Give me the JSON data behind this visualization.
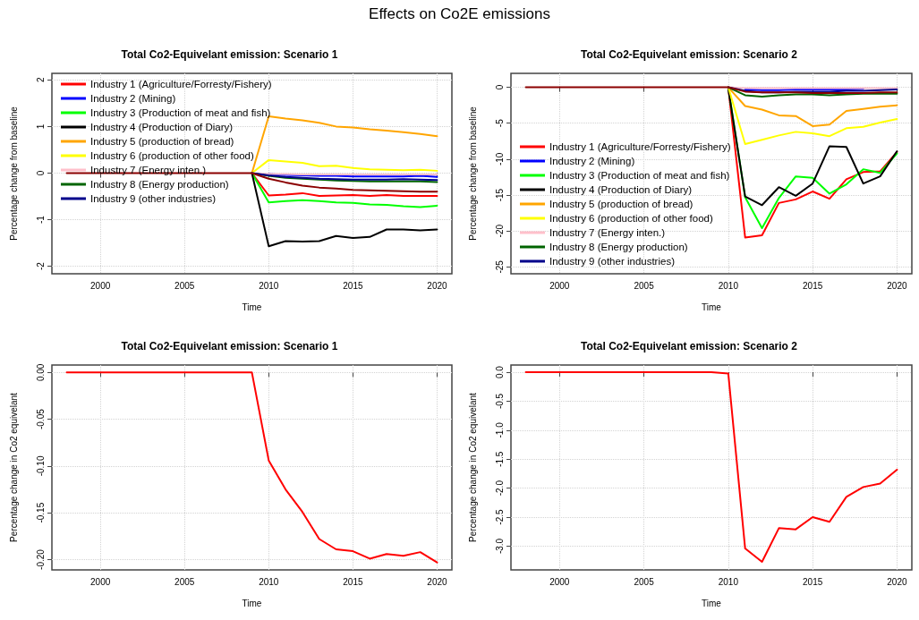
{
  "chart_data": [
    {
      "type": "line",
      "title": "Total Co2-Equivelant emission: Scenario 1",
      "annotations": [
        "Effects on Co2E emissions"
      ],
      "xlabel": "Time",
      "ylabel": "Percentage change from baseline",
      "x": [
        1998,
        1999,
        2000,
        2001,
        2002,
        2003,
        2004,
        2005,
        2006,
        2007,
        2008,
        2009,
        2010,
        2011,
        2012,
        2013,
        2014,
        2015,
        2016,
        2017,
        2018,
        2019,
        2020
      ],
      "xlim": [
        1997.12,
        2020.88
      ],
      "xticks": [
        2000,
        2005,
        2010,
        2015,
        2020
      ],
      "ylim": [
        -2.16,
        2.14
      ],
      "yticks": [
        -2,
        -1,
        0,
        1,
        2
      ],
      "grid": true,
      "legend": "top left",
      "series": [
        {
          "name": "Industry 1 (Agriculture/Forresty/Fishery)",
          "color": "#ff0000",
          "values": [
            null,
            null,
            null,
            null,
            null,
            null,
            null,
            null,
            null,
            null,
            null,
            0,
            -0.48,
            -0.46,
            -0.43,
            -0.49,
            -0.48,
            -0.47,
            -0.49,
            -0.47,
            -0.49,
            -0.49,
            -0.49
          ]
        },
        {
          "name": "Industry 2 (Mining)",
          "color": "#0000ff",
          "values": [
            null,
            null,
            null,
            null,
            null,
            null,
            null,
            null,
            null,
            null,
            null,
            null,
            -0.02,
            -0.04,
            -0.05,
            -0.06,
            -0.06,
            -0.07,
            -0.07,
            -0.07,
            -0.07,
            -0.06,
            -0.08
          ]
        },
        {
          "name": "Industry 3 (Production of meat and fish)",
          "color": "#00ff00",
          "values": [
            null,
            null,
            null,
            null,
            null,
            null,
            null,
            null,
            null,
            null,
            null,
            0,
            -0.63,
            -0.6,
            -0.58,
            -0.6,
            -0.63,
            -0.64,
            -0.67,
            -0.68,
            -0.71,
            -0.73,
            -0.7
          ]
        },
        {
          "name": "Industry 4 (Production of Diary)",
          "color": "#000000",
          "values": [
            null,
            null,
            null,
            null,
            null,
            null,
            null,
            null,
            null,
            null,
            null,
            0,
            -1.57,
            -1.46,
            -1.47,
            -1.46,
            -1.35,
            -1.39,
            -1.37,
            -1.21,
            -1.21,
            -1.23,
            -1.21
          ]
        },
        {
          "name": "Industry 5 (production of bread)",
          "color": "#ffa500",
          "values": [
            null,
            null,
            null,
            null,
            null,
            null,
            null,
            null,
            null,
            null,
            null,
            0,
            1.22,
            1.17,
            1.13,
            1.08,
            1.0,
            0.98,
            0.94,
            0.91,
            0.88,
            0.84,
            0.79
          ]
        },
        {
          "name": "Industry 6 (production of other food)",
          "color": "#ffff00",
          "values": [
            null,
            null,
            null,
            null,
            null,
            null,
            null,
            null,
            null,
            null,
            null,
            0,
            0.28,
            0.25,
            0.22,
            0.15,
            0.16,
            0.11,
            0.08,
            0.07,
            0.06,
            0.07,
            0.05
          ]
        },
        {
          "name": "Industry 7 (Energy inten.)",
          "color": "#ffc0cb",
          "values": [
            null,
            null,
            null,
            null,
            null,
            null,
            null,
            null,
            null,
            null,
            null,
            0,
            -0.02,
            -0.02,
            -0.03,
            -0.03,
            -0.03,
            -0.03,
            -0.03,
            -0.03,
            -0.03,
            -0.03,
            -0.03
          ]
        },
        {
          "name": "Industry 8 (Energy production)",
          "color": "#006400",
          "values": [
            null,
            null,
            null,
            null,
            null,
            null,
            null,
            null,
            null,
            null,
            null,
            0,
            -0.06,
            -0.1,
            -0.12,
            -0.14,
            -0.16,
            -0.17,
            -0.18,
            -0.18,
            -0.18,
            -0.18,
            -0.19
          ]
        },
        {
          "name": "Industry 9 (other industries)",
          "color": "#00008b",
          "values": [
            null,
            null,
            null,
            null,
            null,
            null,
            null,
            null,
            null,
            null,
            null,
            0,
            -0.05,
            -0.08,
            -0.1,
            -0.12,
            -0.13,
            -0.14,
            -0.14,
            -0.14,
            -0.13,
            -0.14,
            -0.15
          ]
        },
        {
          "color": "#8b0000",
          "values": [
            0,
            0,
            0,
            0,
            0,
            0,
            0,
            0,
            0,
            0,
            0,
            0,
            -0.12,
            -0.2,
            -0.27,
            -0.31,
            -0.33,
            -0.36,
            -0.37,
            -0.38,
            -0.39,
            -0.4,
            -0.4
          ]
        }
      ]
    },
    {
      "type": "line",
      "title": "Total Co2-Equivelant emission: Scenario 2",
      "xlabel": "Time",
      "ylabel": "Percentage change from baseline",
      "x": [
        1998,
        1999,
        2000,
        2001,
        2002,
        2003,
        2004,
        2005,
        2006,
        2007,
        2008,
        2009,
        2010,
        2011,
        2012,
        2013,
        2014,
        2015,
        2016,
        2017,
        2018,
        2019,
        2020
      ],
      "xlim": [
        1997.12,
        2020.88
      ],
      "xticks": [
        2000,
        2005,
        2010,
        2015,
        2020
      ],
      "ylim": [
        -25.95,
        1.94
      ],
      "yticks": [
        -25,
        -20,
        -15,
        -10,
        -5,
        0
      ],
      "grid": true,
      "legend": "bottom left",
      "series": [
        {
          "name": "Industry 1 (Agriculture/Forresty/Fishery)",
          "color": "#ff0000",
          "values": [
            null,
            null,
            null,
            null,
            null,
            null,
            null,
            null,
            null,
            null,
            null,
            null,
            0,
            -20.9,
            -20.6,
            -16.1,
            -15.6,
            -14.5,
            -15.5,
            -12.8,
            -11.8,
            -11.7,
            -9.0
          ]
        },
        {
          "name": "Industry 2 (Mining)",
          "color": "#0000ff",
          "values": [
            null,
            null,
            null,
            null,
            null,
            null,
            null,
            null,
            null,
            null,
            null,
            null,
            null,
            -0.3,
            -0.4,
            -0.4,
            -0.3,
            -0.3,
            -0.3,
            -0.3,
            -0.2,
            null,
            null
          ]
        },
        {
          "name": "Industry 3 (Production of meat and fish)",
          "color": "#00ff00",
          "values": [
            null,
            null,
            null,
            null,
            null,
            null,
            null,
            null,
            null,
            null,
            null,
            null,
            0,
            -15.3,
            -19.6,
            -15.4,
            -12.4,
            -12.6,
            -14.8,
            -13.5,
            -11.4,
            -11.9,
            -9.2
          ]
        },
        {
          "name": "Industry 4 (Production of Diary)",
          "color": "#000000",
          "values": [
            null,
            null,
            null,
            null,
            null,
            null,
            null,
            null,
            null,
            null,
            null,
            null,
            -0.2,
            -15.2,
            -16.4,
            -13.9,
            -15.1,
            -13.4,
            -8.2,
            -8.3,
            -13.4,
            -12.4,
            -8.9
          ]
        },
        {
          "name": "Industry 5 (production of bread)",
          "color": "#ffa500",
          "values": [
            null,
            null,
            null,
            null,
            null,
            null,
            null,
            null,
            null,
            null,
            null,
            null,
            0,
            -2.6,
            -3.1,
            -3.9,
            -4.0,
            -5.4,
            -5.2,
            -3.3,
            -3.0,
            -2.7,
            -2.5
          ]
        },
        {
          "name": "Industry 6 (production of other food)",
          "color": "#ffff00",
          "values": [
            null,
            null,
            null,
            null,
            null,
            null,
            null,
            null,
            null,
            null,
            null,
            null,
            0,
            -7.9,
            -7.3,
            -6.7,
            -6.2,
            -6.4,
            -6.8,
            -5.7,
            -5.5,
            -4.9,
            -4.4
          ]
        },
        {
          "name": "Industry 7 (Energy inten.)",
          "color": "#ffc0cb",
          "values": [
            null,
            null,
            null,
            null,
            null,
            null,
            null,
            null,
            null,
            null,
            null,
            null,
            0,
            -0.1,
            -0.1,
            -0.1,
            -0.1,
            -0.1,
            -0.1,
            -0.1,
            -0.1,
            -0.1,
            -0.1
          ]
        },
        {
          "name": "Industry 8 (Energy production)",
          "color": "#006400",
          "values": [
            null,
            null,
            null,
            null,
            null,
            null,
            null,
            null,
            null,
            null,
            null,
            null,
            0,
            -1.1,
            -1.3,
            -1.1,
            -1.0,
            -1.0,
            -1.1,
            -1.0,
            -0.9,
            -0.9,
            -0.9
          ]
        },
        {
          "name": "Industry 9 (other industries)",
          "color": "#00008b",
          "values": [
            null,
            null,
            null,
            null,
            null,
            null,
            null,
            null,
            null,
            null,
            null,
            null,
            0,
            -0.5,
            -0.7,
            -0.7,
            -0.6,
            -0.6,
            -0.6,
            -0.5,
            -0.5,
            -0.4,
            -0.3
          ]
        },
        {
          "color": "#8b0000",
          "values": [
            0,
            0,
            0,
            0,
            0,
            0,
            0,
            0,
            0,
            0,
            0,
            0,
            0,
            -0.6,
            -0.7,
            -0.7,
            -0.7,
            -0.8,
            -0.8,
            -0.8,
            -0.8,
            -0.7,
            -0.7
          ]
        }
      ]
    },
    {
      "type": "line",
      "title": "Total Co2-Equivelant emission: Scenario 1",
      "xlabel": "Time",
      "ylabel": "Percentage change in Co2 equivelant",
      "x": [
        1998,
        1999,
        2000,
        2001,
        2002,
        2003,
        2004,
        2005,
        2006,
        2007,
        2008,
        2009,
        2010,
        2011,
        2012,
        2013,
        2014,
        2015,
        2016,
        2017,
        2018,
        2019,
        2020
      ],
      "xlim": [
        1997.12,
        2020.88
      ],
      "xticks": [
        2000,
        2005,
        2010,
        2015,
        2020
      ],
      "ylim": [
        -0.211,
        0.008
      ],
      "yticks": [
        {
          "value": -0.2,
          "label": "-0.20"
        },
        {
          "value": -0.15,
          "label": "-0.15"
        },
        {
          "value": -0.1,
          "label": "-0.10"
        },
        {
          "value": -0.05,
          "label": "-0.05"
        },
        {
          "value": 0,
          "label": "0.00"
        }
      ],
      "grid": true,
      "series": [
        {
          "color": "#ff0000",
          "values": [
            0,
            0,
            0,
            0,
            0,
            0,
            0,
            0,
            0,
            0,
            0,
            0,
            -0.094,
            -0.125,
            -0.149,
            -0.178,
            -0.189,
            -0.191,
            -0.199,
            -0.194,
            -0.196,
            -0.192,
            -0.203
          ]
        }
      ]
    },
    {
      "type": "line",
      "title": "Total Co2-Equivelant emission: Scenario 2",
      "xlabel": "Time",
      "ylabel": "Percentage change in Co2 equivelant",
      "x": [
        1998,
        1999,
        2000,
        2001,
        2002,
        2003,
        2004,
        2005,
        2006,
        2007,
        2008,
        2009,
        2010,
        2011,
        2012,
        2013,
        2014,
        2015,
        2016,
        2017,
        2018,
        2019,
        2020
      ],
      "xlim": [
        1997.12,
        2020.88
      ],
      "xticks": [
        2000,
        2005,
        2010,
        2015,
        2020
      ],
      "ylim": [
        -3.41,
        0.125
      ],
      "yticks": [
        {
          "value": -3,
          "label": "-3.0"
        },
        {
          "value": -2.5,
          "label": "-2.5"
        },
        {
          "value": -2,
          "label": "-2.0"
        },
        {
          "value": -1.5,
          "label": "-1.5"
        },
        {
          "value": -1,
          "label": "-1.0"
        },
        {
          "value": -0.5,
          "label": "-0.5"
        },
        {
          "value": 0,
          "label": "0.0"
        }
      ],
      "grid": true,
      "series": [
        {
          "color": "#ff0000",
          "values": [
            0,
            0,
            0,
            0,
            0,
            0,
            0,
            0,
            0,
            0,
            0,
            0,
            -0.02,
            -3.04,
            -3.27,
            -2.69,
            -2.71,
            -2.5,
            -2.58,
            -2.15,
            -1.98,
            -1.92,
            -1.68
          ]
        }
      ]
    }
  ]
}
